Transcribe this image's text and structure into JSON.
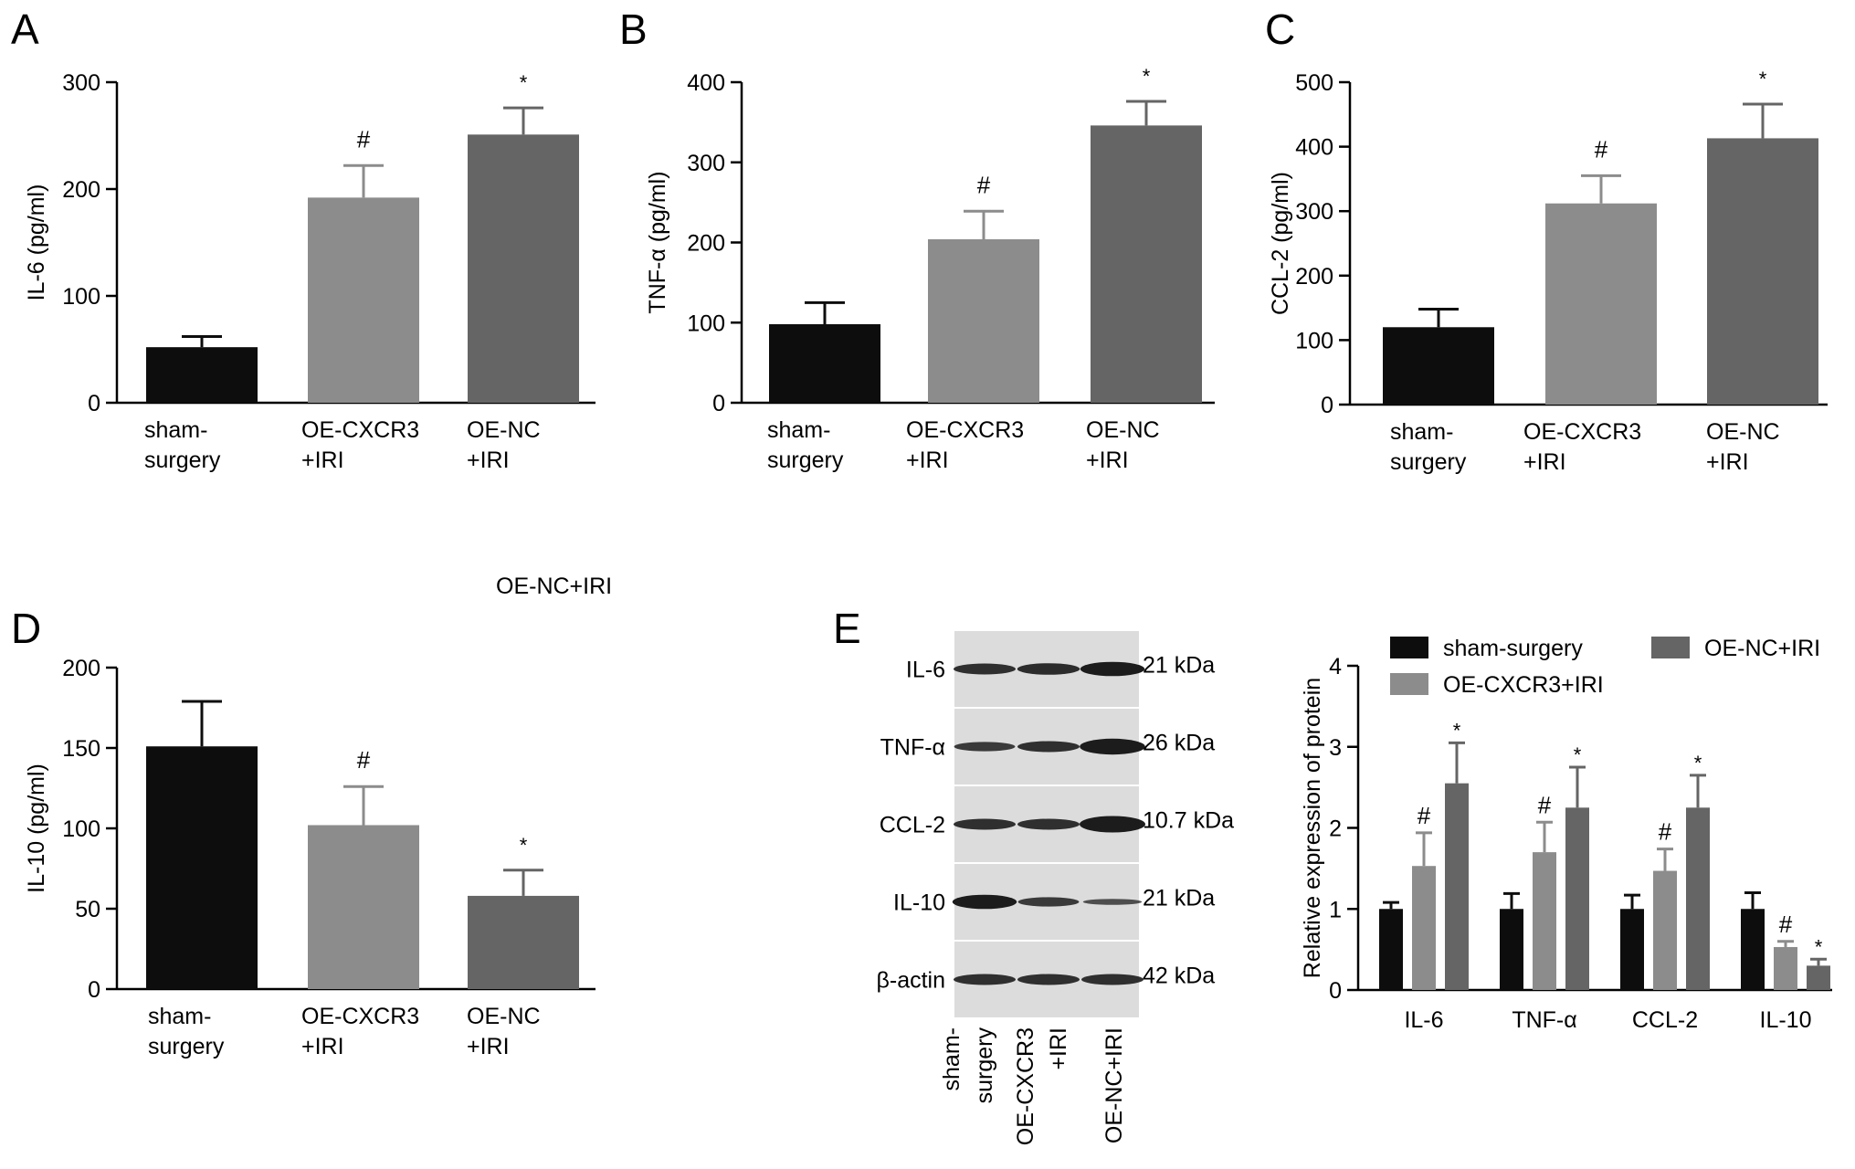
{
  "colors": {
    "sham": "#0d0d0d",
    "oe_cxcr3": "#8c8c8c",
    "oe_nc": "#656565",
    "axis": "#000000",
    "blot_bg": "#dcdcdc",
    "band": "#1c1c1c"
  },
  "chart_data": [
    {
      "panel": "A",
      "type": "bar",
      "ylabel": "IL-6 (pg/ml)",
      "ylim": [
        0,
        300
      ],
      "yticks": [
        0,
        100,
        200,
        300
      ],
      "categories": [
        [
          "sham-",
          "surgery"
        ],
        [
          "OE-CXCR3",
          "+IRI"
        ],
        [
          "OE-NC",
          "+IRI"
        ]
      ],
      "values": [
        52,
        192,
        251
      ],
      "errors": [
        10,
        30,
        25
      ],
      "marks": [
        "",
        "#",
        "*"
      ]
    },
    {
      "panel": "B",
      "type": "bar",
      "ylabel": "TNF-α (pg/ml)",
      "ylim": [
        0,
        400
      ],
      "yticks": [
        0,
        100,
        200,
        300,
        400
      ],
      "categories": [
        [
          "sham-",
          "surgery"
        ],
        [
          "OE-CXCR3",
          "+IRI"
        ],
        [
          "OE-NC",
          "+IRI"
        ]
      ],
      "values": [
        98,
        204,
        346
      ],
      "errors": [
        27,
        35,
        30
      ],
      "marks": [
        "",
        "#",
        "*"
      ]
    },
    {
      "panel": "C",
      "type": "bar",
      "ylabel": "CCL-2 (pg/ml)",
      "ylim": [
        0,
        500
      ],
      "yticks": [
        0,
        100,
        200,
        300,
        400,
        500
      ],
      "categories": [
        [
          "sham-",
          "surgery"
        ],
        [
          "OE-CXCR3",
          "+IRI"
        ],
        [
          "OE-NC",
          "+IRI"
        ]
      ],
      "values": [
        120,
        312,
        413
      ],
      "errors": [
        28,
        43,
        53
      ],
      "marks": [
        "",
        "#",
        "*"
      ]
    },
    {
      "panel": "D",
      "type": "bar",
      "ylabel": "IL-10 (pg/ml)",
      "ylim": [
        0,
        200
      ],
      "yticks": [
        0,
        50,
        100,
        150,
        200
      ],
      "categories": [
        [
          "sham-",
          "surgery"
        ],
        [
          "OE-CXCR3",
          "+IRI"
        ],
        [
          "OE-NC",
          "+IRI"
        ]
      ],
      "values": [
        151,
        102,
        58
      ],
      "errors": [
        28,
        24,
        16
      ],
      "marks": [
        "",
        "#",
        "*"
      ]
    },
    {
      "panel": "E",
      "type": "bar",
      "ylabel": "Relative expression of protein",
      "ylim": [
        0,
        4
      ],
      "yticks": [
        0,
        1,
        2,
        3,
        4
      ],
      "categories": [
        "IL-6",
        "TNF-α",
        "CCL-2",
        "IL-10"
      ],
      "series": [
        {
          "name": "sham-surgery",
          "values": [
            1.0,
            1.0,
            1.0,
            1.0
          ],
          "errors": [
            0.08,
            0.19,
            0.17,
            0.2
          ],
          "marks": [
            "",
            "",
            "",
            ""
          ]
        },
        {
          "name": "OE-CXCR3+IRI",
          "values": [
            1.53,
            1.7,
            1.47,
            0.53
          ],
          "errors": [
            0.41,
            0.37,
            0.27,
            0.07
          ],
          "marks": [
            "#",
            "#",
            "#",
            "#"
          ]
        },
        {
          "name": "OE-NC+IRI",
          "values": [
            2.55,
            2.25,
            2.25,
            0.3
          ],
          "errors": [
            0.5,
            0.5,
            0.4,
            0.08
          ],
          "marks": [
            "*",
            "*",
            "*",
            "*"
          ]
        }
      ]
    }
  ],
  "blot": {
    "proteins": [
      "IL-6",
      "TNF-α",
      "CCL-2",
      "IL-10",
      "β-actin"
    ],
    "sizes": [
      "21 kDa",
      "26 kDa",
      "10.7 kDa",
      "21 kDa",
      "42 kDa"
    ],
    "lanes": [
      [
        "sham-",
        "surgery"
      ],
      [
        "OE-CXCR3",
        "+IRI"
      ],
      [
        "OE-NC+IRI"
      ]
    ],
    "band_levels": [
      [
        1.0,
        1.05,
        1.3
      ],
      [
        0.85,
        1.0,
        1.45
      ],
      [
        1.0,
        1.0,
        1.5
      ],
      [
        1.3,
        0.85,
        0.55
      ],
      [
        1.0,
        1.0,
        1.0
      ]
    ]
  },
  "stray_label": "OE-NC+IRI"
}
